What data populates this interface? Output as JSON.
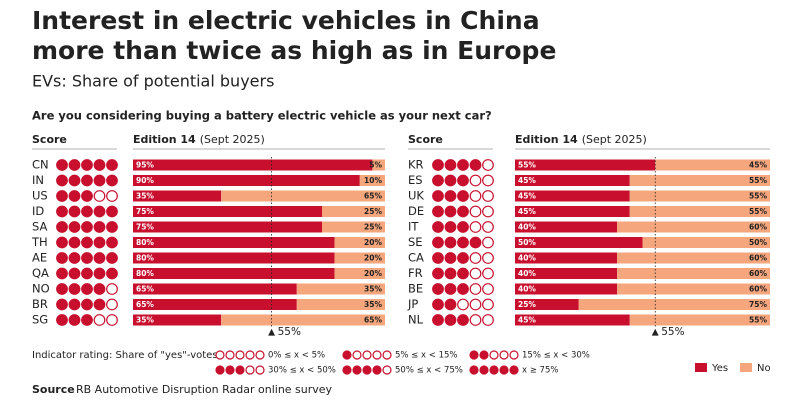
{
  "header": {
    "title": [
      "Interest in electric vehicles in China",
      "more than twice as high as in Europe"
    ],
    "subtitle": "EVs: Share of potential buyers",
    "question": "Are you considering buying a battery electric vehicle as your next car?"
  },
  "chart_data": [
    {
      "type": "bar",
      "orientation": "horizontal",
      "stacked": true,
      "score_header": "Score",
      "edition_header": "Edition 14",
      "edition_date": "(Sept 2025)",
      "categories": [
        "CN",
        "IN",
        "US",
        "ID",
        "SA",
        "TH",
        "AE",
        "QA",
        "NO",
        "BR",
        "SG"
      ],
      "scores": [
        5,
        5,
        3,
        5,
        5,
        5,
        5,
        5,
        4,
        4,
        3
      ],
      "xlim": [
        0,
        100
      ],
      "reference": {
        "value": 55,
        "label": "55%"
      },
      "series": [
        {
          "name": "Yes",
          "color": "#c8102e",
          "values": [
            95,
            90,
            35,
            75,
            75,
            80,
            80,
            80,
            65,
            65,
            35
          ],
          "value_labels": [
            "95%",
            "90%",
            "35%",
            "75%",
            "75%",
            "80%",
            "80%",
            "80%",
            "65%",
            "65%",
            "35%"
          ]
        },
        {
          "name": "No",
          "color": "#f5a67c",
          "values": [
            5,
            10,
            65,
            25,
            25,
            20,
            20,
            20,
            35,
            35,
            65
          ],
          "value_labels": [
            "5%",
            "10%",
            "65%",
            "25%",
            "25%",
            "20%",
            "20%",
            "20%",
            "35%",
            "35%",
            "65%"
          ]
        }
      ]
    },
    {
      "type": "bar",
      "orientation": "horizontal",
      "stacked": true,
      "score_header": "Score",
      "edition_header": "Edition 14",
      "edition_date": "(Sept 2025)",
      "categories": [
        "KR",
        "ES",
        "UK",
        "DE",
        "IT",
        "SE",
        "CA",
        "FR",
        "BE",
        "JP",
        "NL"
      ],
      "scores": [
        4,
        3,
        3,
        3,
        3,
        4,
        3,
        3,
        3,
        2,
        3
      ],
      "xlim": [
        0,
        100
      ],
      "reference": {
        "value": 55,
        "label": "55%"
      },
      "series": [
        {
          "color": "#c8102e",
          "values": [
            55,
            45,
            45,
            45,
            40,
            50,
            40,
            40,
            40,
            25,
            45
          ],
          "value_labels": [
            "55%",
            "45%",
            "45%",
            "45%",
            "40%",
            "50%",
            "40%",
            "40%",
            "40%",
            "25%",
            "45%"
          ]
        },
        {
          "color": "#f5a67c",
          "values": [
            45,
            55,
            55,
            55,
            60,
            50,
            60,
            60,
            60,
            75,
            55
          ],
          "value_labels": [
            "45%",
            "55%",
            "55%",
            "55%",
            "60%",
            "50%",
            "60%",
            "60%",
            "60%",
            "75%",
            "55%"
          ]
        }
      ]
    }
  ],
  "score_legend": {
    "title": "Indicator rating: Share of \"yes\"-votes",
    "items": [
      {
        "score": 0,
        "label": "0% ≤ x < 5%"
      },
      {
        "score": 1,
        "label": "5% ≤ x < 15%"
      },
      {
        "score": 2,
        "label": "15% ≤ x < 30%"
      },
      {
        "score": 3,
        "label": "30% ≤ x < 50%"
      },
      {
        "score": 4,
        "label": "50% ≤ x < 75%"
      },
      {
        "score": 5,
        "label": "x ≥ 75%"
      }
    ]
  },
  "source_label": "Source",
  "source": "RB Automotive Disruption Radar online survey"
}
